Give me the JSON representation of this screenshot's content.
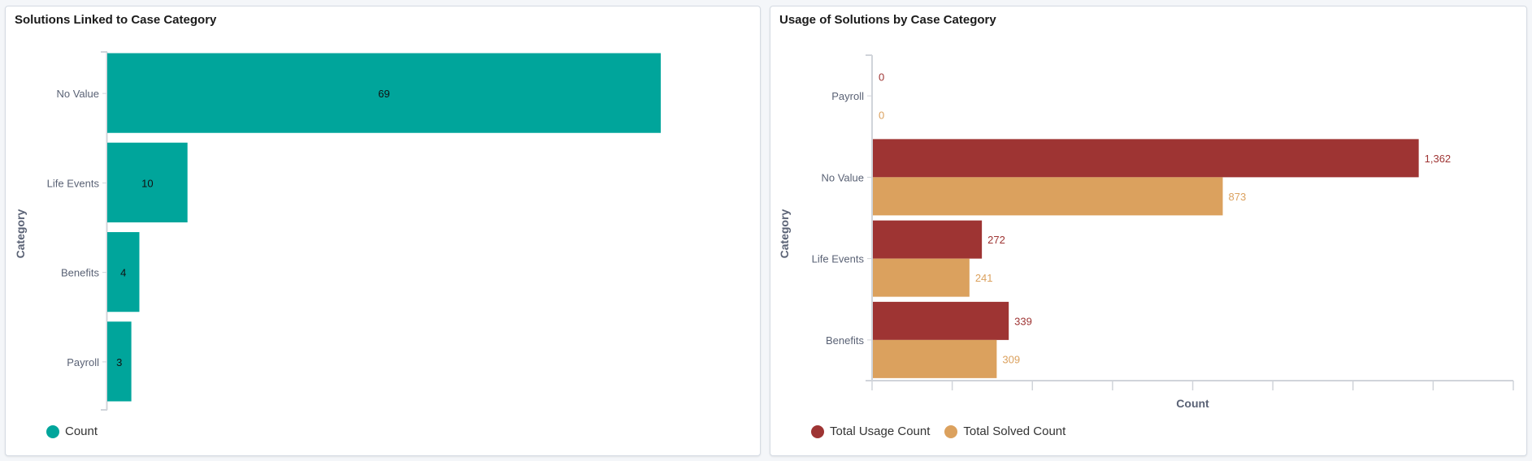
{
  "chart_data": [
    {
      "type": "bar",
      "orientation": "horizontal",
      "title": "Solutions Linked to Case Category",
      "ylabel": "Category",
      "xlabel": "",
      "categories": [
        "No Value",
        "Life Events",
        "Benefits",
        "Payroll"
      ],
      "series": [
        {
          "name": "Count",
          "values": [
            69,
            10,
            4,
            3
          ],
          "color": "#00a59b"
        }
      ],
      "xlim": [
        0,
        80
      ],
      "legend": "bottom-left",
      "data_labels": true,
      "grid": false
    },
    {
      "type": "bar",
      "orientation": "horizontal",
      "title": "Usage of Solutions by Case Category",
      "ylabel": "Category",
      "xlabel": "Count",
      "categories": [
        "Payroll",
        "No Value",
        "Life Events",
        "Benefits"
      ],
      "series": [
        {
          "name": "Total Usage Count",
          "values": [
            0,
            1362,
            272,
            339
          ],
          "labels": [
            "0",
            "1,362",
            "272",
            "339"
          ],
          "color": "#9e3433"
        },
        {
          "name": "Total Solved Count",
          "values": [
            0,
            873,
            241,
            309
          ],
          "labels": [
            "0",
            "873",
            "241",
            "309"
          ],
          "color": "#dba15e"
        }
      ],
      "xlim": [
        0,
        1600
      ],
      "x_tick_step": 200,
      "x_tick_labels_shown": false,
      "legend": "bottom-left",
      "data_labels": true,
      "grid": false
    }
  ]
}
